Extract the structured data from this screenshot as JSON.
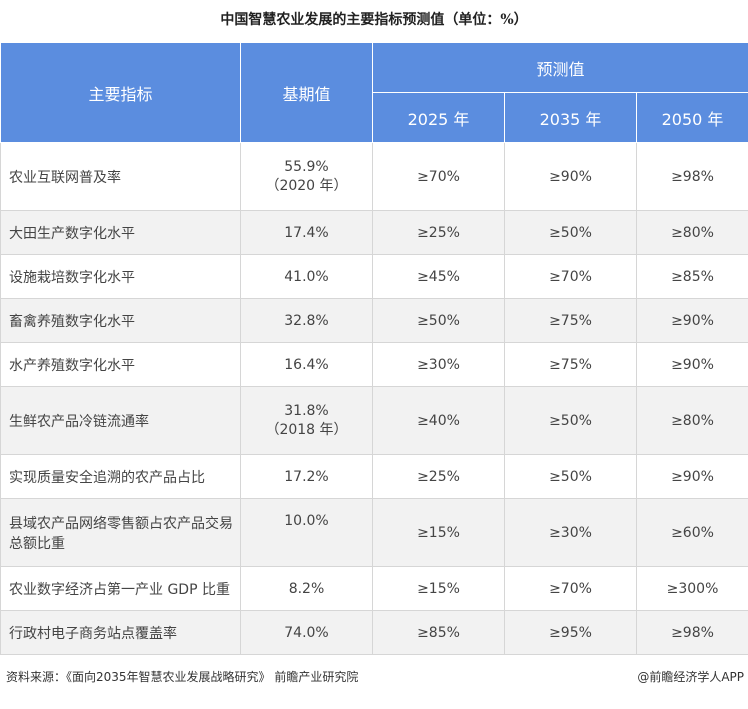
{
  "title": "中国智慧农业发展的主要指标预测值（单位：%）",
  "header": {
    "indicator": "主要指标",
    "base": "基期值",
    "forecast": "预测值",
    "years": [
      "2025 年",
      "2035 年",
      "2050 年"
    ]
  },
  "rows": [
    {
      "name": "农业互联网普及率",
      "base": "55.9%",
      "base_note": "（2020 年）",
      "y2025": "≥70%",
      "y2035": "≥90%",
      "y2050": "≥98%"
    },
    {
      "name": "大田生产数字化水平",
      "base": "17.4%",
      "base_note": "",
      "y2025": "≥25%",
      "y2035": "≥50%",
      "y2050": "≥80%"
    },
    {
      "name": "设施栽培数字化水平",
      "base": "41.0%",
      "base_note": "",
      "y2025": "≥45%",
      "y2035": "≥70%",
      "y2050": "≥85%"
    },
    {
      "name": "畜禽养殖数字化水平",
      "base": "32.8%",
      "base_note": "",
      "y2025": "≥50%",
      "y2035": "≥75%",
      "y2050": "≥90%"
    },
    {
      "name": "水产养殖数字化水平",
      "base": "16.4%",
      "base_note": "",
      "y2025": "≥30%",
      "y2035": "≥75%",
      "y2050": "≥90%"
    },
    {
      "name": "生鲜农产品冷链流通率",
      "base": "31.8%",
      "base_note": "（2018 年）",
      "y2025": "≥40%",
      "y2035": "≥50%",
      "y2050": "≥80%"
    },
    {
      "name": "实现质量安全追溯的农产品占比",
      "base": "17.2%",
      "base_note": "",
      "y2025": "≥25%",
      "y2035": "≥50%",
      "y2050": "≥90%"
    },
    {
      "name": "县域农产品网络零售额占农产品交易总额比重",
      "base": "10.0%",
      "base_note": "",
      "y2025": "≥15%",
      "y2035": "≥30%",
      "y2050": "≥60%"
    },
    {
      "name": "农业数字经济占第一产业 GDP 比重",
      "base": "8.2%",
      "base_note": "",
      "y2025": "≥15%",
      "y2035": "≥70%",
      "y2050": "≥300%"
    },
    {
      "name": "行政村电子商务站点覆盖率",
      "base": "74.0%",
      "base_note": "",
      "y2025": "≥85%",
      "y2035": "≥95%",
      "y2050": "≥98%"
    }
  ],
  "footer": {
    "source": "资料来源：《面向2035年智慧农业发展战略研究》 前瞻产业研究院",
    "brand": "@前瞻经济学人APP"
  },
  "colors": {
    "header_bg": "#5b8ddf",
    "alt_row_bg": "#f2f2f2",
    "border": "#d6d6d6"
  }
}
